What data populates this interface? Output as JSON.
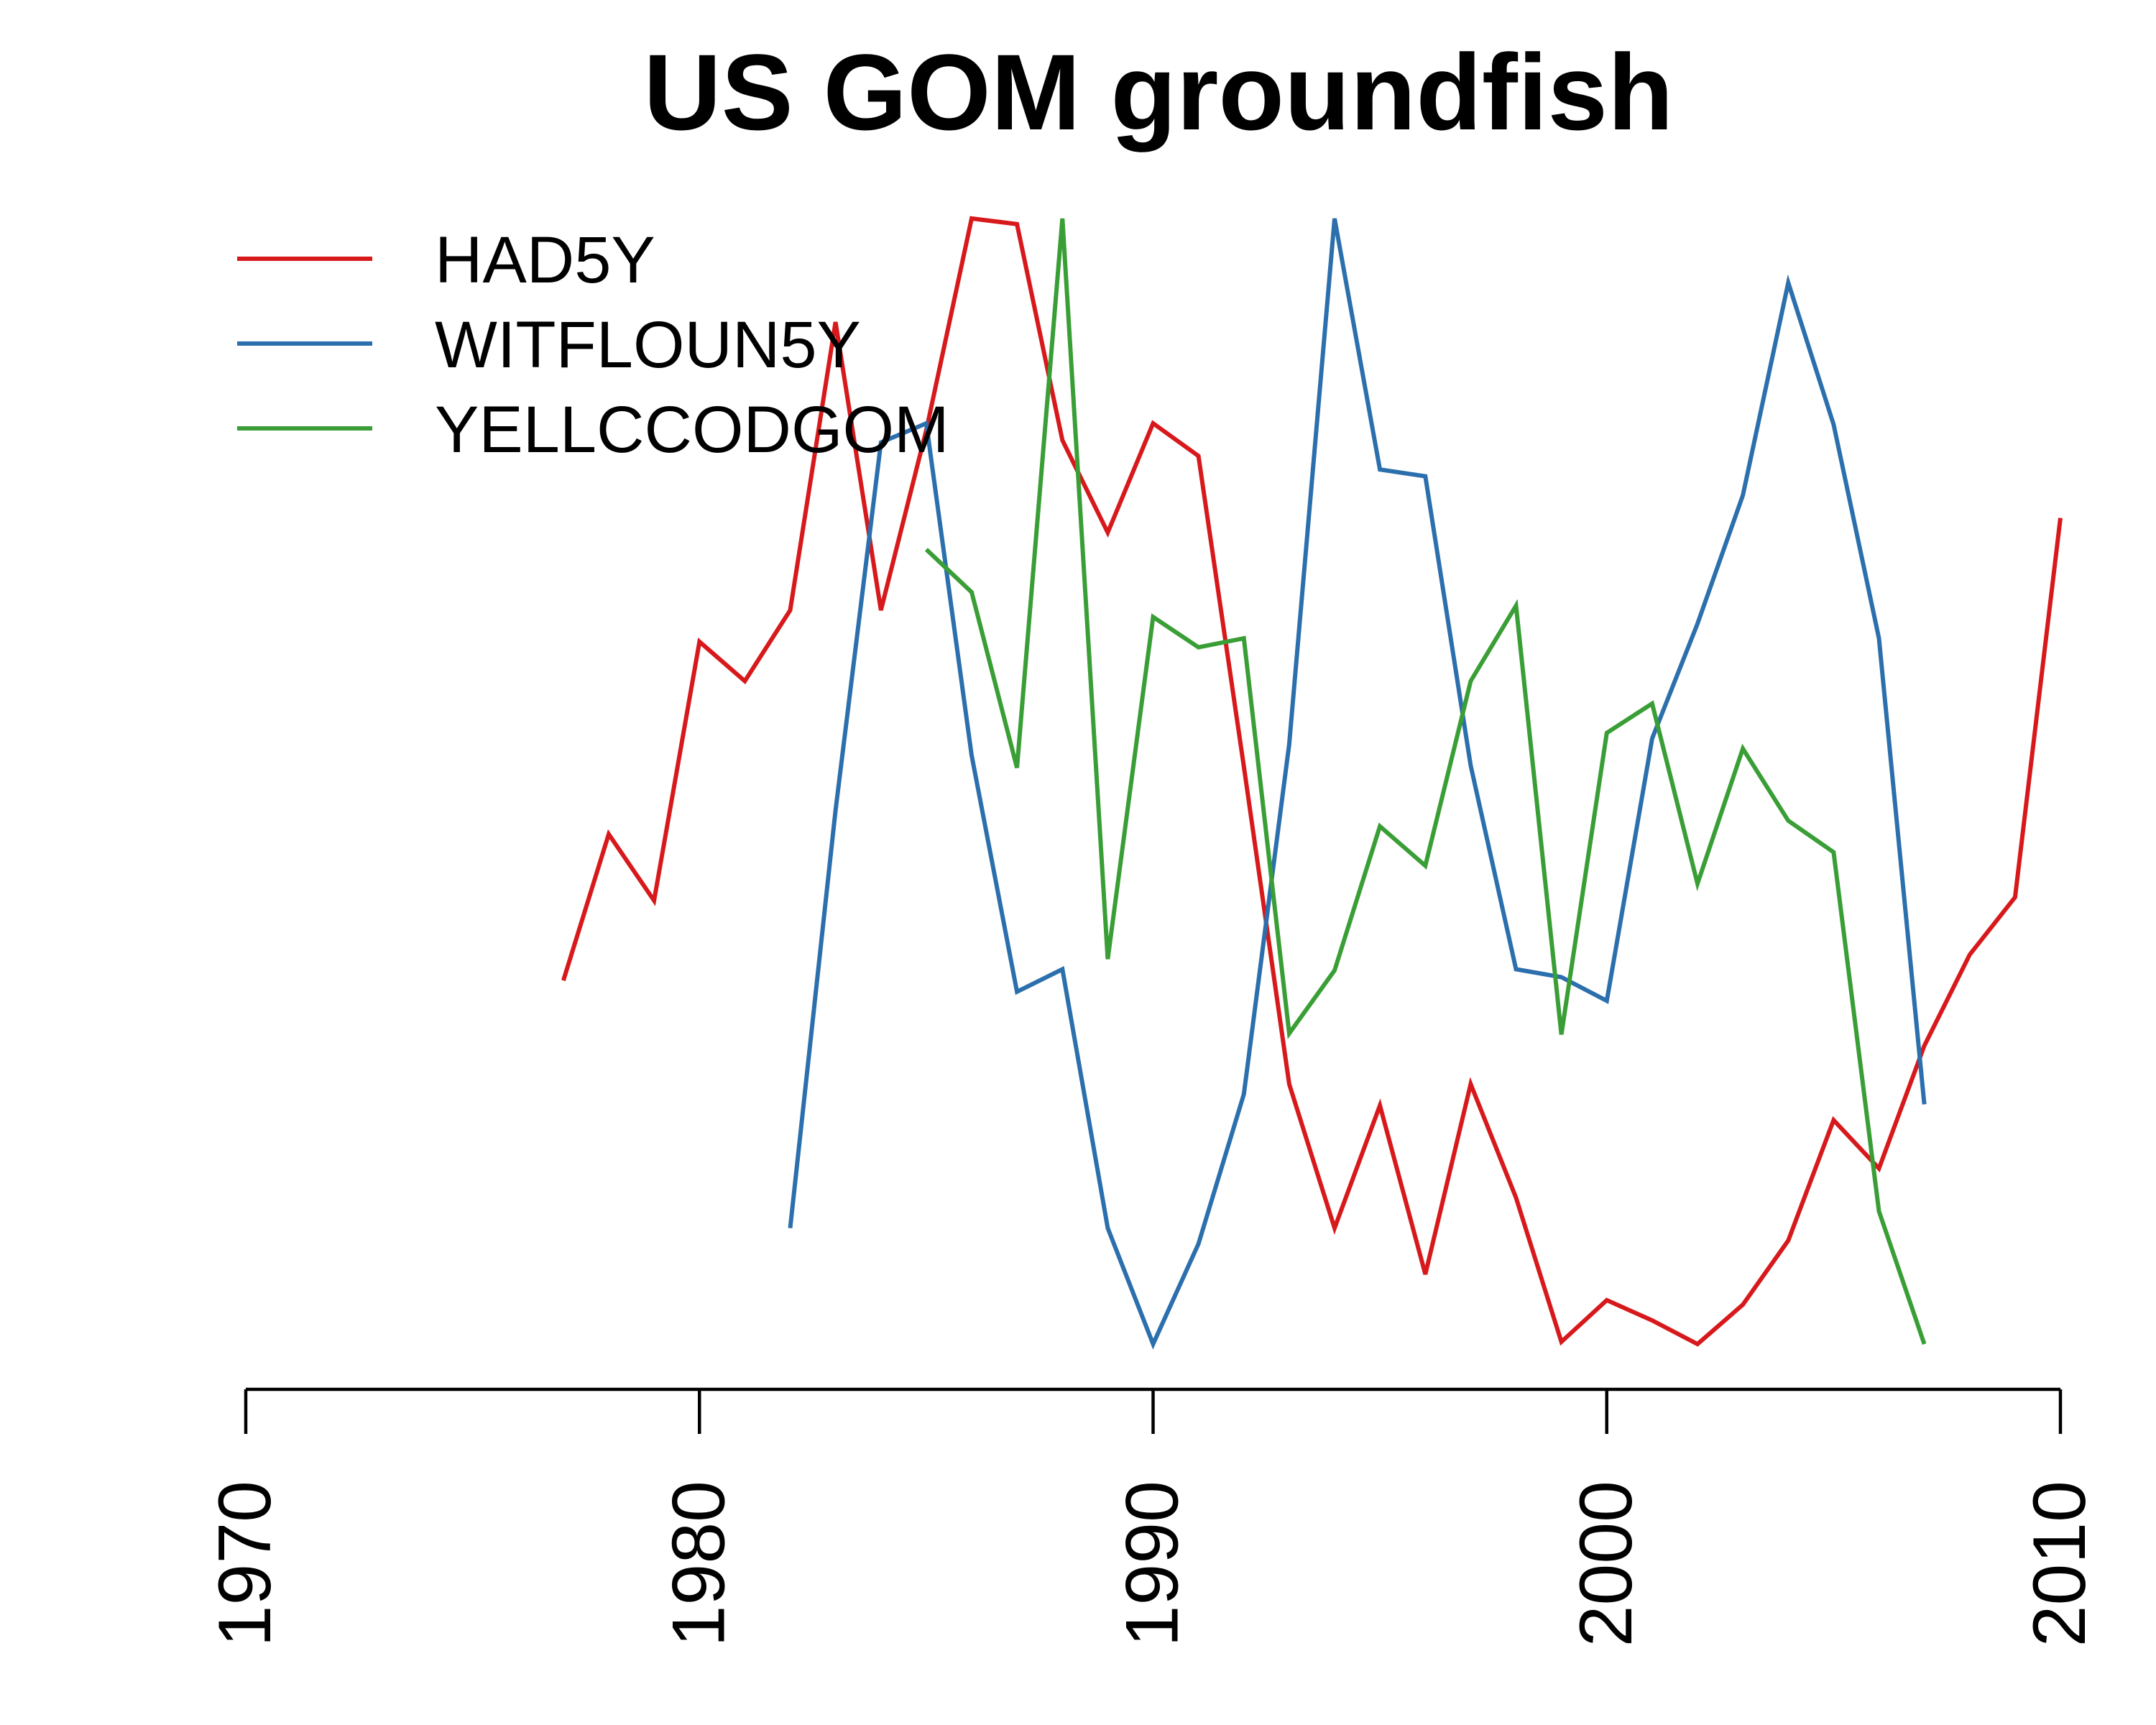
{
  "chart_data": {
    "type": "line",
    "title": "US GOM groundfish",
    "xlabel": "",
    "ylabel": "",
    "xlim": [
      1970,
      2010
    ],
    "ylim": [
      0,
      1
    ],
    "x_ticks": [
      1970,
      1980,
      1990,
      2000,
      2010
    ],
    "y_axis_shown": false,
    "grid": false,
    "legend_position": "top-left",
    "series": [
      {
        "name": "HAD5Y",
        "color": "#d7191c",
        "x": [
          1977,
          1978,
          1979,
          1980,
          1981,
          1982,
          1983,
          1984,
          1985,
          1986,
          1987,
          1988,
          1989,
          1990,
          1991,
          1992,
          1993,
          1994,
          1995,
          1996,
          1997,
          1998,
          1999,
          2000,
          2001,
          2002,
          2003,
          2004,
          2005,
          2006,
          2007,
          2008,
          2009,
          2010
        ],
        "values": [
          0.323,
          0.453,
          0.394,
          0.624,
          0.589,
          0.652,
          0.908,
          0.652,
          0.812,
          1.0,
          0.995,
          0.803,
          0.721,
          0.818,
          0.789,
          0.513,
          0.231,
          0.103,
          0.212,
          0.062,
          0.231,
          0.13,
          0.002,
          0.039,
          0.021,
          0.0,
          0.035,
          0.092,
          0.199,
          0.156,
          0.265,
          0.346,
          0.397,
          0.734
        ]
      },
      {
        "name": "WITFLOUN5Y",
        "color": "#2c6fad",
        "x": [
          1982,
          1983,
          1984,
          1985,
          1986,
          1987,
          1988,
          1989,
          1990,
          1991,
          1992,
          1993,
          1994,
          1995,
          1996,
          1997,
          1998,
          1999,
          2000,
          2001,
          2002,
          2003,
          2004,
          2005,
          2006,
          2007
        ],
        "values": [
          0.103,
          0.474,
          0.801,
          0.818,
          0.523,
          0.313,
          0.333,
          0.103,
          0.0,
          0.089,
          0.222,
          0.533,
          1.0,
          0.777,
          0.771,
          0.514,
          0.333,
          0.326,
          0.305,
          0.538,
          0.64,
          0.754,
          0.943,
          0.817,
          0.627,
          0.213
        ]
      },
      {
        "name": "YELLCCODGOM",
        "color": "#3a9e36",
        "x": [
          1985,
          1986,
          1987,
          1988,
          1989,
          1990,
          1991,
          1992,
          1993,
          1994,
          1995,
          1996,
          1997,
          1998,
          1999,
          2000,
          2001,
          2002,
          2003,
          2004,
          2005,
          2006,
          2007
        ],
        "values": [
          0.706,
          0.668,
          0.512,
          1.0,
          0.342,
          0.646,
          0.619,
          0.627,
          0.276,
          0.332,
          0.46,
          0.425,
          0.589,
          0.656,
          0.275,
          0.543,
          0.569,
          0.409,
          0.529,
          0.465,
          0.437,
          0.118,
          0.0
        ]
      }
    ]
  }
}
